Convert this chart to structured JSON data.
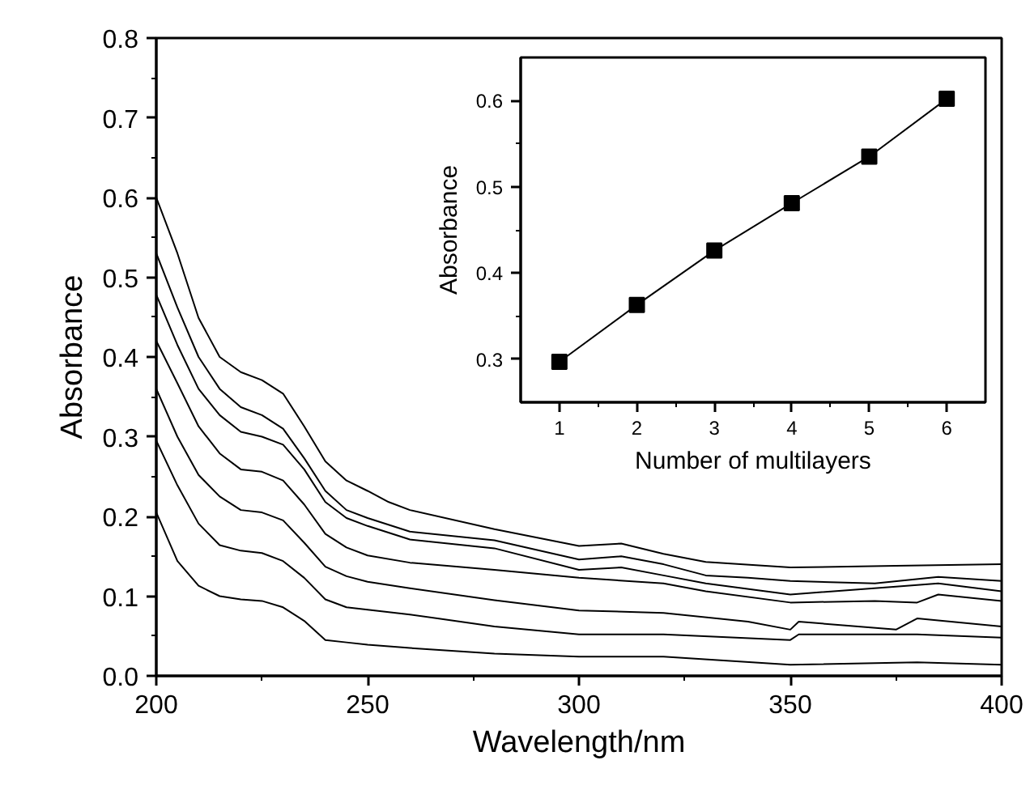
{
  "chart_data": [
    {
      "type": "line",
      "xlabel": "Wavelength/nm",
      "ylabel": "Absorbance",
      "xlim": [
        200,
        400
      ],
      "ylim": [
        0,
        0.8
      ],
      "xticks": [
        200,
        250,
        300,
        350,
        400
      ],
      "yticks": [
        {
          "value": 0,
          "label": "0.0"
        },
        0.1,
        0.2,
        0.3,
        0.4,
        0.5,
        0.6,
        0.7,
        0.8
      ],
      "line_style": "solid",
      "series": [
        {
          "color": "#000000",
          "x": [
            200,
            205,
            210,
            215,
            220,
            225,
            230,
            235,
            240,
            245,
            250,
            255,
            260,
            280,
            300,
            310,
            320,
            330,
            350,
            375,
            400
          ],
          "values": [
            0.6,
            0.53,
            0.449,
            0.4,
            0.381,
            0.371,
            0.354,
            0.313,
            0.269,
            0.245,
            0.232,
            0.218,
            0.208,
            0.184,
            0.163,
            0.166,
            0.153,
            0.143,
            0.136,
            0.138,
            0.14
          ]
        },
        {
          "color": "#000000",
          "x": [
            200,
            205,
            210,
            215,
            220,
            225,
            230,
            235,
            240,
            245,
            250,
            260,
            280,
            300,
            310,
            320,
            330,
            340,
            350,
            370,
            385,
            400
          ],
          "values": [
            0.53,
            0.462,
            0.4,
            0.36,
            0.337,
            0.327,
            0.31,
            0.273,
            0.232,
            0.208,
            0.198,
            0.181,
            0.17,
            0.146,
            0.15,
            0.14,
            0.126,
            0.123,
            0.119,
            0.116,
            0.124,
            0.119
          ]
        },
        {
          "color": "#000000",
          "x": [
            200,
            205,
            210,
            215,
            220,
            225,
            230,
            235,
            240,
            245,
            250,
            260,
            280,
            300,
            310,
            320,
            330,
            350,
            375,
            385,
            400
          ],
          "values": [
            0.478,
            0.415,
            0.36,
            0.327,
            0.306,
            0.3,
            0.29,
            0.259,
            0.218,
            0.198,
            0.188,
            0.171,
            0.16,
            0.133,
            0.136,
            0.126,
            0.116,
            0.102,
            0.112,
            0.116,
            0.106
          ]
        },
        {
          "color": "#000000",
          "x": [
            200,
            205,
            210,
            215,
            220,
            225,
            230,
            235,
            240,
            245,
            250,
            260,
            280,
            300,
            320,
            330,
            350,
            370,
            380,
            385,
            400
          ],
          "values": [
            0.42,
            0.367,
            0.313,
            0.279,
            0.259,
            0.256,
            0.245,
            0.215,
            0.178,
            0.161,
            0.151,
            0.142,
            0.133,
            0.123,
            0.116,
            0.106,
            0.092,
            0.094,
            0.092,
            0.102,
            0.094
          ]
        },
        {
          "color": "#000000",
          "x": [
            200,
            205,
            210,
            215,
            220,
            225,
            230,
            235,
            240,
            245,
            250,
            260,
            280,
            300,
            320,
            340,
            350,
            352,
            375,
            380,
            400
          ],
          "values": [
            0.36,
            0.3,
            0.252,
            0.225,
            0.208,
            0.205,
            0.195,
            0.167,
            0.137,
            0.125,
            0.118,
            0.11,
            0.095,
            0.082,
            0.079,
            0.068,
            0.058,
            0.068,
            0.058,
            0.072,
            0.062
          ]
        },
        {
          "color": "#000000",
          "x": [
            200,
            205,
            210,
            215,
            220,
            225,
            230,
            235,
            240,
            245,
            250,
            260,
            280,
            300,
            320,
            350,
            352,
            380,
            400
          ],
          "values": [
            0.295,
            0.239,
            0.191,
            0.164,
            0.157,
            0.154,
            0.144,
            0.123,
            0.096,
            0.086,
            0.083,
            0.077,
            0.062,
            0.052,
            0.052,
            0.045,
            0.052,
            0.052,
            0.048
          ]
        },
        {
          "color": "#000000",
          "x": [
            200,
            205,
            210,
            215,
            220,
            225,
            230,
            235,
            240,
            245,
            250,
            260,
            280,
            300,
            320,
            350,
            380,
            400
          ],
          "values": [
            0.205,
            0.144,
            0.113,
            0.1,
            0.096,
            0.094,
            0.086,
            0.069,
            0.045,
            0.042,
            0.039,
            0.035,
            0.028,
            0.024,
            0.024,
            0.014,
            0.017,
            0.014
          ]
        }
      ]
    },
    {
      "type": "line",
      "xlabel": "Number of multilayers",
      "ylabel": "Absorbance",
      "xlim": [
        0.5,
        6.5
      ],
      "ylim": [
        0.25,
        0.65
      ],
      "xticks": [
        1,
        2,
        3,
        4,
        5,
        6
      ],
      "yticks": [
        0.3,
        0.4,
        0.5,
        0.6
      ],
      "marker": "square",
      "line_style": "solid",
      "series": [
        {
          "color": "#000000",
          "x": [
            1,
            2,
            3,
            4,
            5,
            6
          ],
          "values": [
            0.297,
            0.363,
            0.426,
            0.481,
            0.535,
            0.602
          ]
        }
      ]
    }
  ]
}
